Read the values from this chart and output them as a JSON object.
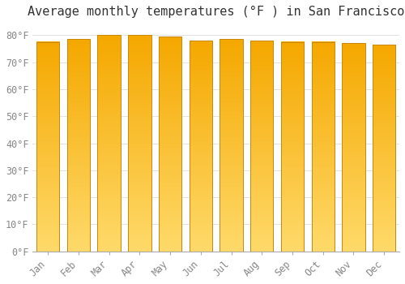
{
  "title": "Average monthly temperatures (°F ) in San Francisco",
  "months": [
    "Jan",
    "Feb",
    "Mar",
    "Apr",
    "May",
    "Jun",
    "Jul",
    "Aug",
    "Sep",
    "Oct",
    "Nov",
    "Dec"
  ],
  "values": [
    77.5,
    78.5,
    80.0,
    80.0,
    79.5,
    78.0,
    78.5,
    78.0,
    77.5,
    77.5,
    77.0,
    76.5
  ],
  "grad_color_bottom": "#FFDA6A",
  "grad_color_top": "#F5A800",
  "bar_edge_color": "#C8880A",
  "background_color": "#FFFFFF",
  "plot_bg_color": "#FFFFFF",
  "grid_color": "#DDDDDD",
  "ylim": [
    0,
    84
  ],
  "ytick_step": 10,
  "title_fontsize": 11,
  "tick_fontsize": 8.5,
  "font_family": "monospace",
  "title_color": "#333333",
  "tick_color": "#888888"
}
